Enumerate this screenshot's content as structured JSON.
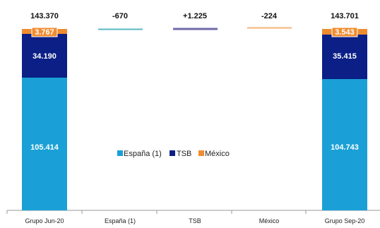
{
  "chart_data": {
    "type": "bar",
    "subtype": "waterfall",
    "categories": [
      "Grupo Jun-20",
      "España (1)",
      "TSB",
      "México",
      "Grupo Sep-20"
    ],
    "series": [
      {
        "name": "España (1)",
        "color": "#1aa0d6",
        "values": [
          105.414,
          null,
          null,
          null,
          104.743
        ]
      },
      {
        "name": "TSB",
        "color": "#0b1f86",
        "values": [
          34.19,
          null,
          null,
          null,
          35.415
        ]
      },
      {
        "name": "México",
        "color": "#f08c30",
        "values": [
          3.767,
          null,
          null,
          null,
          3.543
        ]
      }
    ],
    "deltas": [
      {
        "category": "España (1)",
        "value": -670,
        "label": "-670",
        "color": "#58b8c4"
      },
      {
        "category": "TSB",
        "value": 1225,
        "label": "+1.225",
        "color": "#6f6aa8"
      },
      {
        "category": "México",
        "value": -224,
        "label": "-224",
        "color": "#f4b37a"
      }
    ],
    "segment_labels": [
      [
        "105.414",
        "34.190",
        "3.767"
      ],
      [
        "104.743",
        "35.415",
        "3.543"
      ]
    ],
    "totals": [
      "143.370",
      "143.701"
    ],
    "legend": [
      "España (1)",
      "TSB",
      "México"
    ],
    "legend_position": "center",
    "ylim": [
      0,
      148
    ],
    "grid": false
  }
}
